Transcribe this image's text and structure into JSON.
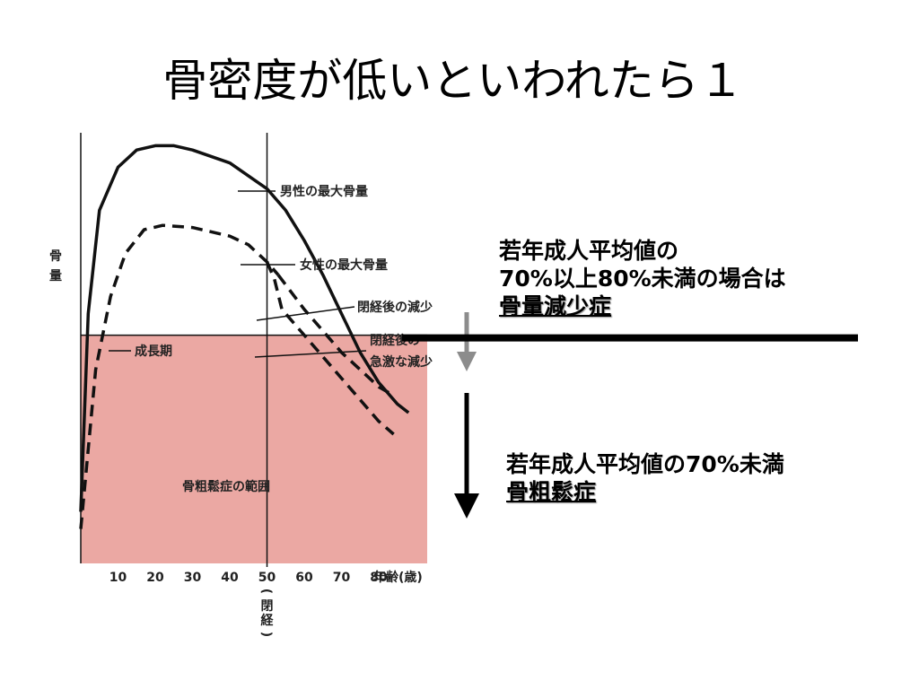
{
  "title": "骨密度が低いといわれたら１",
  "chart_data": {
    "type": "line",
    "ylabel": [
      "骨",
      "量"
    ],
    "xlabel": "年齢(歳)",
    "x_ticks": [
      10,
      20,
      30,
      40,
      50,
      60,
      70,
      80
    ],
    "menopause_label": [
      "(",
      "閉",
      "経",
      ")"
    ],
    "xlim": [
      0,
      93
    ],
    "ylim": [
      0,
      1
    ],
    "osteoporosis_threshold": 0.53,
    "menopause_age": 50,
    "zone_label": "骨粗鬆症の範囲",
    "series": [
      {
        "name": "男性の最大骨量",
        "style": "solid",
        "points": [
          [
            0,
            0.12
          ],
          [
            2,
            0.58
          ],
          [
            5,
            0.82
          ],
          [
            10,
            0.92
          ],
          [
            15,
            0.96
          ],
          [
            20,
            0.97
          ],
          [
            25,
            0.97
          ],
          [
            30,
            0.96
          ],
          [
            40,
            0.93
          ],
          [
            50,
            0.87
          ],
          [
            55,
            0.82
          ],
          [
            60,
            0.75
          ],
          [
            65,
            0.67
          ],
          [
            70,
            0.58
          ],
          [
            75,
            0.49
          ],
          [
            80,
            0.42
          ],
          [
            85,
            0.37
          ],
          [
            88,
            0.35
          ]
        ]
      },
      {
        "name": "女性の最大骨量",
        "style": "dashed",
        "points": [
          [
            0,
            0.08
          ],
          [
            4,
            0.45
          ],
          [
            8,
            0.62
          ],
          [
            12,
            0.72
          ],
          [
            17,
            0.775
          ],
          [
            22,
            0.785
          ],
          [
            30,
            0.78
          ],
          [
            40,
            0.76
          ],
          [
            45,
            0.74
          ],
          [
            50,
            0.7
          ],
          [
            53,
            0.67
          ]
        ]
      },
      {
        "name": "閉経後の減少",
        "style": "dashed",
        "points": [
          [
            53,
            0.67
          ],
          [
            60,
            0.59
          ],
          [
            65,
            0.54
          ],
          [
            70,
            0.49
          ],
          [
            75,
            0.45
          ],
          [
            80,
            0.41
          ],
          [
            84,
            0.39
          ]
        ]
      },
      {
        "name": "閉経後の急激な減少",
        "style": "dashed",
        "points": [
          [
            50,
            0.7
          ],
          [
            52,
            0.66
          ],
          [
            54,
            0.59
          ],
          [
            58,
            0.55
          ],
          [
            65,
            0.48
          ],
          [
            70,
            0.43
          ],
          [
            75,
            0.38
          ],
          [
            80,
            0.33
          ],
          [
            84,
            0.3
          ]
        ]
      }
    ],
    "annotations": [
      {
        "text": "成長期"
      },
      {
        "text": "男性の最大骨量"
      },
      {
        "text": "女性の最大骨量"
      },
      {
        "text": "閉経後の減少"
      },
      {
        "text": "閉経後の"
      },
      {
        "text": "急激な減少"
      }
    ],
    "colors": {
      "zone_fill": "#eba8a3",
      "line": "#111111",
      "arrow_grey": "#8c8c8c",
      "arrow_black": "#000000"
    }
  },
  "notes": {
    "osteopenia": {
      "line1": "若年成人平均値の",
      "line2": "70%以上80%未満の場合は",
      "term": "骨量減少症"
    },
    "osteoporosis": {
      "line1": "若年成人平均値の70%未満",
      "term": "骨粗鬆症"
    }
  }
}
